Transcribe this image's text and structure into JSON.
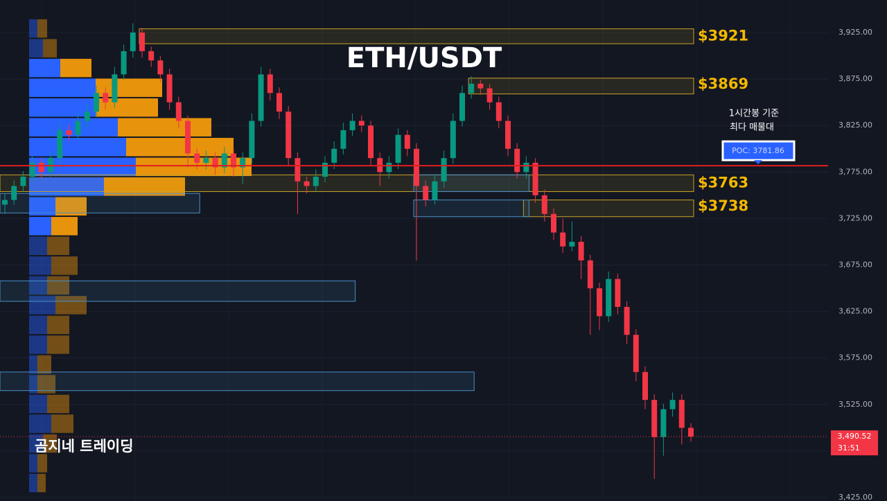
{
  "chart_data": {
    "type": "candlestick",
    "title": "ETH/USDT",
    "watermark": "곰지네 트레이딩",
    "ylim": [
      3421.3,
      3960
    ],
    "yticks": [
      {
        "value": 3425,
        "label": "3,425.00"
      },
      {
        "value": 3475,
        "label": "3,475.00"
      },
      {
        "value": 3525,
        "label": "3,525.00"
      },
      {
        "value": 3575,
        "label": "3,575.00"
      },
      {
        "value": 3625,
        "label": "3,625.00"
      },
      {
        "value": 3675,
        "label": "3,675.00"
      },
      {
        "value": 3725,
        "label": "3,725.00"
      },
      {
        "value": 3775,
        "label": "3,775.00"
      },
      {
        "value": 3825,
        "label": "3,825.00"
      },
      {
        "value": 3875,
        "label": "3,875.00"
      },
      {
        "value": 3925,
        "label": "3,925.00"
      }
    ],
    "grid": true,
    "up_color": "#089981",
    "down_color": "#f23645",
    "open": [
      3740,
      3745,
      3760,
      3770,
      3785,
      3775,
      3790,
      3820,
      3815,
      3830,
      3840,
      3860,
      3850,
      3880,
      3905,
      3925,
      3905,
      3895,
      3880,
      3850,
      3830,
      3795,
      3785,
      3790,
      3780,
      3795,
      3780,
      3790,
      3830,
      3880,
      3860,
      3840,
      3790,
      3765,
      3760,
      3770,
      3785,
      3800,
      3820,
      3830,
      3825,
      3790,
      3775,
      3785,
      3815,
      3800,
      3760,
      3745,
      3765,
      3790,
      3830,
      3860,
      3870,
      3865,
      3850,
      3830,
      3800,
      3775,
      3785,
      3750,
      3730,
      3710,
      3695,
      3700,
      3680,
      3650,
      3620,
      3660,
      3630,
      3600,
      3560,
      3530,
      3490,
      3520,
      3530,
      3500
    ],
    "high": [
      3752,
      3766,
      3776,
      3792,
      3790,
      3796,
      3828,
      3826,
      3838,
      3848,
      3868,
      3866,
      3888,
      3912,
      3935,
      3930,
      3910,
      3900,
      3886,
      3856,
      3836,
      3800,
      3798,
      3796,
      3802,
      3800,
      3796,
      3838,
      3888,
      3886,
      3866,
      3846,
      3796,
      3770,
      3778,
      3792,
      3808,
      3828,
      3838,
      3836,
      3830,
      3796,
      3792,
      3822,
      3820,
      3806,
      3766,
      3772,
      3798,
      3838,
      3868,
      3878,
      3874,
      3870,
      3856,
      3836,
      3806,
      3792,
      3790,
      3756,
      3736,
      3725,
      3722,
      3706,
      3686,
      3656,
      3668,
      3666,
      3636,
      3606,
      3566,
      3536,
      3526,
      3538,
      3536,
      3505
    ],
    "low": [
      3730,
      3740,
      3754,
      3764,
      3768,
      3770,
      3784,
      3808,
      3810,
      3822,
      3834,
      3842,
      3844,
      3874,
      3898,
      3898,
      3888,
      3872,
      3842,
      3822,
      3780,
      3778,
      3778,
      3772,
      3774,
      3770,
      3762,
      3784,
      3824,
      3852,
      3832,
      3782,
      3730,
      3752,
      3754,
      3764,
      3778,
      3794,
      3814,
      3818,
      3782,
      3760,
      3768,
      3778,
      3792,
      3680,
      3738,
      3740,
      3758,
      3784,
      3824,
      3854,
      3858,
      3842,
      3822,
      3792,
      3768,
      3768,
      3742,
      3722,
      3702,
      3688,
      3690,
      3660,
      3600,
      3605,
      3614,
      3622,
      3590,
      3550,
      3520,
      3445,
      3470,
      3512,
      3482,
      3485
    ],
    "close": [
      3745,
      3760,
      3770,
      3785,
      3775,
      3790,
      3820,
      3815,
      3830,
      3840,
      3860,
      3850,
      3880,
      3905,
      3925,
      3905,
      3895,
      3880,
      3850,
      3830,
      3795,
      3785,
      3790,
      3780,
      3795,
      3780,
      3790,
      3830,
      3880,
      3860,
      3840,
      3790,
      3765,
      3760,
      3770,
      3785,
      3800,
      3820,
      3830,
      3825,
      3790,
      3775,
      3785,
      3815,
      3800,
      3760,
      3745,
      3765,
      3790,
      3830,
      3860,
      3870,
      3865,
      3850,
      3830,
      3800,
      3775,
      3785,
      3750,
      3730,
      3710,
      3695,
      3700,
      3680,
      3650,
      3620,
      3660,
      3630,
      3600,
      3560,
      3530,
      3490,
      3520,
      3530,
      3500,
      3490.52
    ],
    "zones": [
      {
        "low": 3913,
        "high": 3929,
        "start": 15,
        "end": 75,
        "color": "#c9a227",
        "label": "$3921",
        "price": 3921
      },
      {
        "low": 3859,
        "high": 3876,
        "start": 51,
        "end": 75,
        "color": "#c9a227",
        "label": "$3869",
        "price": 3869
      },
      {
        "low": 3754,
        "high": 3772,
        "start": 0,
        "end": 75,
        "color": "#c9a227",
        "label": "$3763",
        "price": 3763
      },
      {
        "low": 3727,
        "high": 3745,
        "start": 57,
        "end": 75,
        "color": "#c9a227",
        "label": "$3738",
        "price": 3738
      },
      {
        "low": 3731,
        "high": 3752,
        "start": 0,
        "end": 21,
        "color": "#4a90c8"
      },
      {
        "low": 3636,
        "high": 3658,
        "start": 0,
        "end": 38,
        "color": "#4a90c8"
      },
      {
        "low": 3540,
        "high": 3560,
        "start": 0,
        "end": 51,
        "color": "#4a90c8"
      },
      {
        "low": 3754,
        "high": 3772,
        "start": 45,
        "end": 57,
        "color": "#4a90c8"
      },
      {
        "low": 3727,
        "high": 3745,
        "start": 45,
        "end": 57,
        "color": "#4a90c8"
      }
    ],
    "profile": {
      "bins": [
        3430,
        3451.25,
        3472.5,
        3493.75,
        3515,
        3536.25,
        3557.5,
        3578.75,
        3600,
        3621.25,
        3642.5,
        3663.75,
        3685,
        3706.25,
        3727.5,
        3748.75,
        3770,
        3791.25,
        3812.5,
        3833.75,
        3855,
        3876.25,
        3897.5,
        3918.75,
        3940
      ],
      "buy": [
        12,
        12,
        20,
        32,
        26,
        12,
        12,
        26,
        26,
        38,
        26,
        32,
        26,
        32,
        38,
        108,
        154,
        140,
        128,
        96,
        96,
        45,
        20,
        12
      ],
      "sell": [
        12,
        14,
        20,
        32,
        32,
        26,
        20,
        32,
        32,
        45,
        32,
        38,
        32,
        38,
        45,
        117,
        167,
        155,
        135,
        90,
        96,
        45,
        20,
        14
      ],
      "buy_color": "#2962ff",
      "sell_color": "#e8930c",
      "value_area": [
        3706.25,
        3897.5
      ]
    },
    "poc": {
      "value": 3781.86,
      "label": "POC: 3781.86",
      "note_1": "1시간봉 기준",
      "note_2": "최다 매물대",
      "color": "#e01e1e"
    },
    "last_price": {
      "value": 3490.52,
      "label": "3,490.52",
      "countdown": "31:51"
    }
  }
}
